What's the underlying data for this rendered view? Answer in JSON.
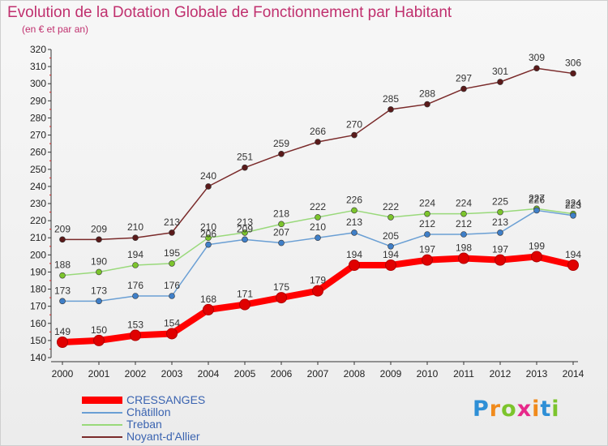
{
  "title": "Evolution de la Dotation Globale de Fonctionnement par Habitant",
  "subtitle": "(en € et par an)",
  "logo": {
    "text": "Proxiti",
    "letters": [
      {
        "ch": "P",
        "color": "#2e8fd6"
      },
      {
        "ch": "r",
        "color": "#f08a1c"
      },
      {
        "ch": "o",
        "color": "#7cc42c"
      },
      {
        "ch": "x",
        "color": "#e7298a"
      },
      {
        "ch": "i",
        "color": "#f08a1c"
      },
      {
        "ch": "t",
        "color": "#2e8fd6"
      },
      {
        "ch": "i",
        "color": "#7cc42c"
      }
    ]
  },
  "chart_data": {
    "type": "line",
    "title": "Evolution de la Dotation Globale de Fonctionnement par Habitant",
    "subtitle": "(en € et par an)",
    "x": [
      "2000",
      "2001",
      "2002",
      "2003",
      "2004",
      "2005",
      "2006",
      "2007",
      "2008",
      "2009",
      "2010",
      "2011",
      "2012",
      "2013",
      "2014"
    ],
    "ylim": [
      140,
      320
    ],
    "yticks": [
      140,
      150,
      160,
      170,
      180,
      190,
      200,
      210,
      220,
      230,
      240,
      250,
      260,
      270,
      280,
      290,
      300,
      310,
      320
    ],
    "grid": false,
    "legend_position": "bottom-left",
    "series": [
      {
        "name": "Noyant-d'Allier",
        "color": "#7a2a2a",
        "markerColor": "#5a1a1a",
        "values": [
          209,
          209,
          210,
          213,
          240,
          251,
          259,
          266,
          270,
          285,
          288,
          297,
          301,
          309,
          306
        ],
        "labels": [
          "209",
          "209",
          "210",
          "213",
          "240",
          "251",
          "259",
          "266",
          "270",
          "285",
          "288",
          "297",
          "301",
          "309",
          "306"
        ]
      },
      {
        "name": "Treban",
        "color": "#99d97a",
        "markerColor": "#7cc42c",
        "values": [
          188,
          190,
          194,
          195,
          210,
          213,
          218,
          222,
          226,
          222,
          224,
          224,
          225,
          227,
          224
        ],
        "labels": [
          "188",
          "190",
          "194",
          "195",
          "210",
          "213",
          "218",
          "222",
          "226",
          "222",
          "224",
          "224",
          "225",
          "227",
          "224"
        ]
      },
      {
        "name": "Châtillon",
        "color": "#6a9fd4",
        "markerColor": "#3f7fc8",
        "values": [
          173,
          173,
          176,
          176,
          206,
          209,
          207,
          210,
          213,
          205,
          212,
          212,
          213,
          226,
          223
        ],
        "labels": [
          "173",
          "173",
          "176",
          "176",
          "206",
          "209",
          "207",
          "210",
          "213",
          "205",
          "212",
          "212",
          "213",
          "226",
          "223"
        ]
      },
      {
        "name": "CRESSANGES",
        "color": "#ff0000",
        "markerColor": "#e00000",
        "values": [
          149,
          150,
          153,
          154,
          168,
          171,
          175,
          179,
          194,
          194,
          197,
          198,
          197,
          199,
          194
        ],
        "labels": [
          "149",
          "150",
          "153",
          "154",
          "168",
          "171",
          "175",
          "179",
          "194",
          "194",
          "197",
          "198",
          "197",
          "199",
          "194"
        ]
      }
    ],
    "legend_order": [
      "CRESSANGES",
      "Châtillon",
      "Treban",
      "Noyant-d'Allier"
    ]
  }
}
